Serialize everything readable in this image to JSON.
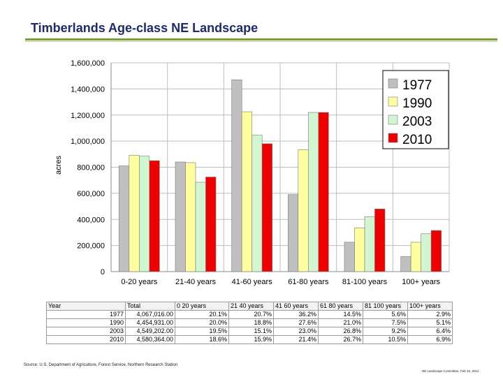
{
  "slide": {
    "title": "Timberlands Age-class NE Landscape",
    "source": "Source: U.S. Department of Agriculture, Forest Service, Northern Research Station",
    "footer": "NE Landscape Committee, Feb 15, 2012"
  },
  "chart_data": {
    "type": "bar",
    "title": "",
    "xlabel": "",
    "ylabel": "acres",
    "ylim": [
      0,
      1600000
    ],
    "yticks": [
      "0",
      "200,000",
      "400,000",
      "600,000",
      "800,000",
      "1,000,000",
      "1,200,000",
      "1,400,000",
      "1,600,000"
    ],
    "grid": true,
    "legend_position": "top-right",
    "categories": [
      "0-20 years",
      "21-40 years",
      "41-60 years",
      "61-80 years",
      "81-100 years",
      "100+ years"
    ],
    "series": [
      {
        "name": "1977",
        "color": "#c0c0c0",
        "values": [
          810000,
          840000,
          1470000,
          590000,
          225000,
          115000
        ]
      },
      {
        "name": "1990",
        "color": "#ffffa0",
        "values": [
          890000,
          835000,
          1225000,
          935000,
          335000,
          225000
        ]
      },
      {
        "name": "2003",
        "color": "#d2f5d2",
        "values": [
          885000,
          685000,
          1045000,
          1220000,
          420000,
          290000
        ]
      },
      {
        "name": "2010",
        "color": "#ee0000",
        "values": [
          850000,
          725000,
          980000,
          1220000,
          480000,
          315000
        ]
      }
    ]
  },
  "table": {
    "headers": [
      "Year",
      "Total",
      "0 20 years",
      "21 40 years",
      "41 60 years",
      "61 80 years",
      "81 100 years",
      "100+ years"
    ],
    "rows": [
      [
        "1977",
        "4,067,016.00",
        "20.1%",
        "20.7%",
        "36.2%",
        "14.5%",
        "5.6%",
        "2.9%"
      ],
      [
        "1990",
        "4,454,931.00",
        "20.0%",
        "18.8%",
        "27.6%",
        "21.0%",
        "7.5%",
        "5.1%"
      ],
      [
        "2003",
        "4,549,202.00",
        "19.5%",
        "15.1%",
        "23.0%",
        "26.8%",
        "9.2%",
        "6.4%"
      ],
      [
        "2010",
        "4,580,364.00",
        "18.6%",
        "15.9%",
        "21.4%",
        "26.7%",
        "10.5%",
        "6.9%"
      ]
    ]
  }
}
